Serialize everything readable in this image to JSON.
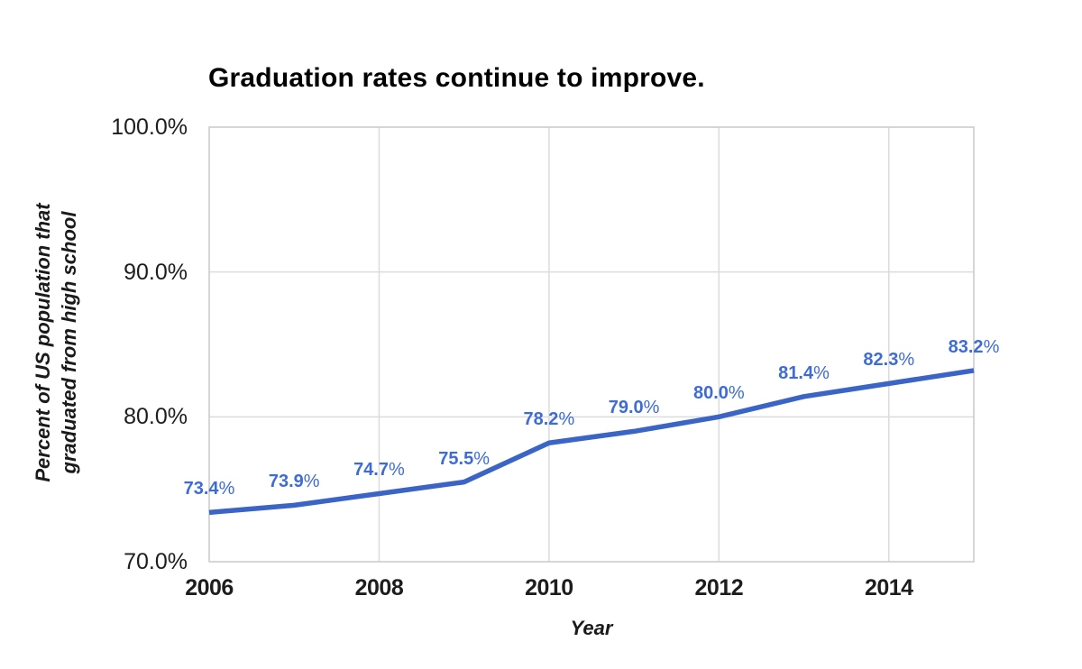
{
  "chart_data": {
    "type": "line",
    "title": "Graduation rates continue to improve.",
    "xlabel": "Year",
    "ylabel": "Percent of US population that graduated from high school",
    "ylabel_lines": [
      "Percent of US population that",
      "graduated from high school"
    ],
    "x": [
      2006,
      2007,
      2008,
      2009,
      2010,
      2011,
      2012,
      2013,
      2014,
      2015
    ],
    "values": [
      73.4,
      73.9,
      74.7,
      75.5,
      78.2,
      79.0,
      80.0,
      81.4,
      82.3,
      83.2
    ],
    "point_labels": [
      "73.4%",
      "73.9%",
      "74.7%",
      "75.5%",
      "78.2%",
      "79.0%",
      "80.0%",
      "81.4%",
      "82.3%",
      "83.2%"
    ],
    "xticks": [
      {
        "label": "2006",
        "value": 2006
      },
      {
        "label": "2008",
        "value": 2008
      },
      {
        "label": "2010",
        "value": 2010
      },
      {
        "label": "2012",
        "value": 2012
      },
      {
        "label": "2014",
        "value": 2014
      }
    ],
    "yticks": [
      {
        "label": "100.0%",
        "value": 100
      },
      {
        "label": "90.0%",
        "value": 90
      },
      {
        "label": "80.0%",
        "value": 80
      },
      {
        "label": "70.0%",
        "value": 70
      }
    ],
    "xlim": [
      2006,
      2015
    ],
    "ylim": [
      70,
      100
    ],
    "grid": true,
    "legend": "none",
    "colors": {
      "line": "#3A64C6",
      "data_label": "#3E6CD4",
      "grid": "#DCDCDC",
      "border": "#C9C9C9",
      "text": "#1D1D1D",
      "background": "#FFFFFF"
    }
  }
}
